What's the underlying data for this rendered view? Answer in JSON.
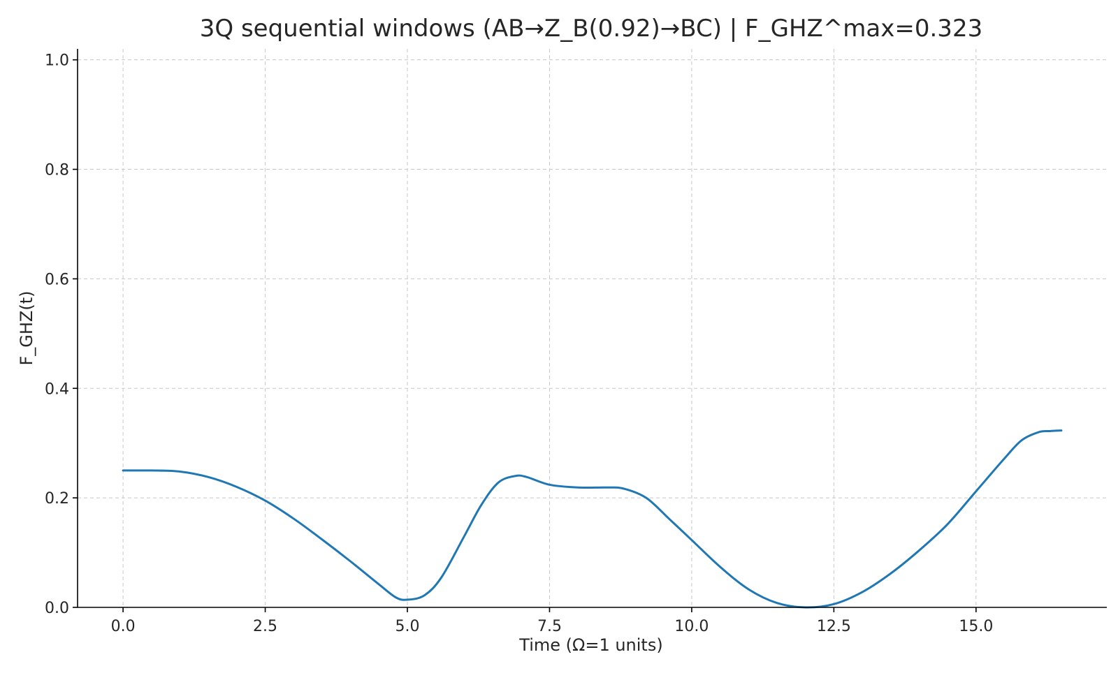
{
  "chart_data": {
    "type": "line",
    "title": "3Q sequential windows (AB→Z_B(0.92)→BC) | F_GHZ^max=0.323",
    "xlabel": "Time (Ω=1 units)",
    "ylabel": "F_GHZ(t)",
    "xlim": [
      -0.8,
      17.3
    ],
    "ylim": [
      0.0,
      1.02
    ],
    "xticks": [
      0.0,
      2.5,
      5.0,
      7.5,
      10.0,
      12.5,
      15.0
    ],
    "xtick_labels": [
      "0.0",
      "2.5",
      "5.0",
      "7.5",
      "10.0",
      "12.5",
      "15.0"
    ],
    "yticks": [
      0.0,
      0.2,
      0.4,
      0.6,
      0.8,
      1.0
    ],
    "ytick_labels": [
      "0.0",
      "0.2",
      "0.4",
      "0.6",
      "0.8",
      "1.0"
    ],
    "grid": true,
    "series": [
      {
        "color": "#1f77b4",
        "x": [
          0.0,
          0.5,
          1.0,
          1.5,
          2.0,
          2.5,
          3.0,
          3.5,
          4.0,
          4.5,
          4.8,
          5.0,
          5.3,
          5.6,
          6.0,
          6.3,
          6.6,
          6.9,
          7.1,
          7.5,
          8.0,
          8.5,
          8.8,
          9.2,
          9.6,
          10.0,
          10.5,
          11.0,
          11.5,
          12.0,
          12.5,
          13.0,
          13.5,
          14.0,
          14.5,
          15.0,
          15.5,
          15.8,
          16.1,
          16.3,
          16.5
        ],
        "y": [
          0.25,
          0.25,
          0.248,
          0.238,
          0.22,
          0.195,
          0.162,
          0.124,
          0.084,
          0.042,
          0.018,
          0.014,
          0.022,
          0.055,
          0.13,
          0.187,
          0.228,
          0.24,
          0.238,
          0.224,
          0.219,
          0.219,
          0.217,
          0.2,
          0.162,
          0.123,
          0.074,
          0.033,
          0.008,
          0.0,
          0.006,
          0.028,
          0.062,
          0.104,
          0.152,
          0.212,
          0.272,
          0.305,
          0.32,
          0.322,
          0.323
        ]
      }
    ]
  }
}
